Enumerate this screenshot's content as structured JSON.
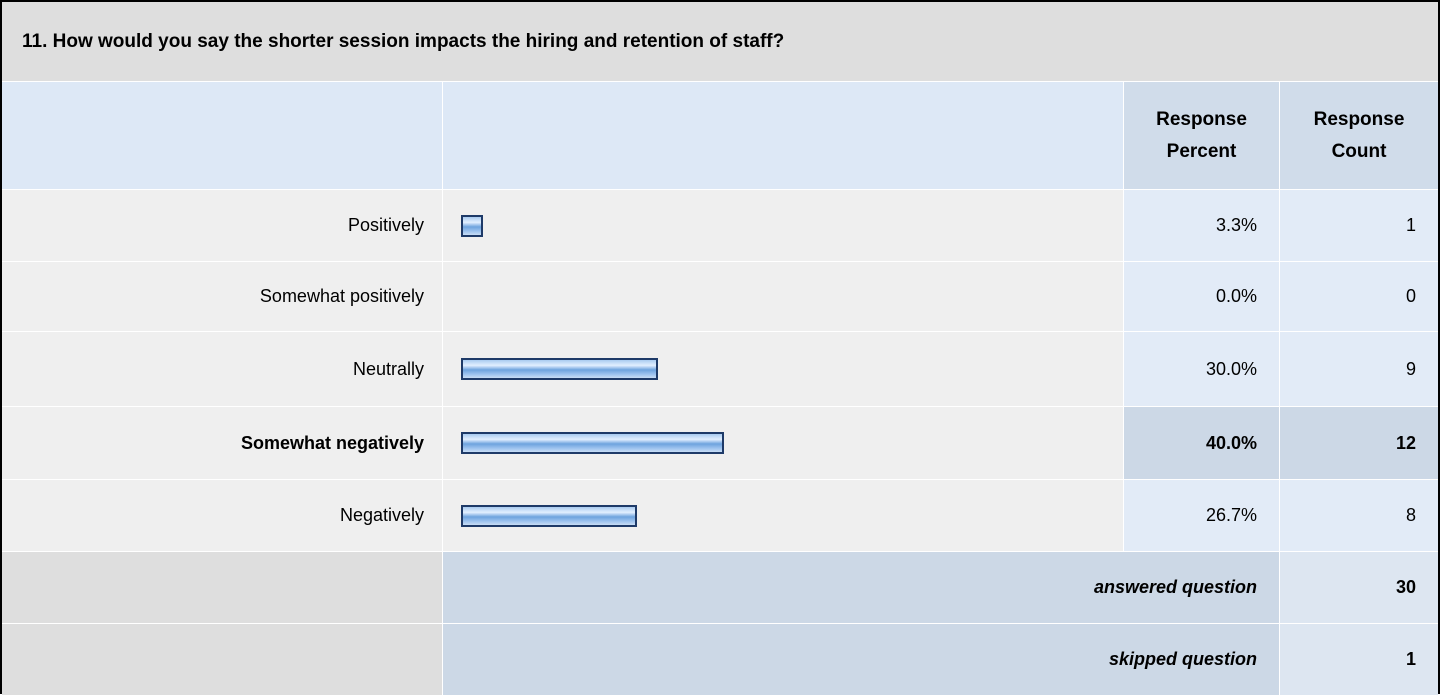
{
  "question": "11. How would you say the shorter session impacts the hiring and retention of staff?",
  "headers": {
    "percent": "Response Percent",
    "count": "Response Count"
  },
  "rows": [
    {
      "label": "Positively",
      "percent": 3.3,
      "percent_label": "3.3%",
      "count": 1
    },
    {
      "label": "Somewhat positively",
      "percent": 0.0,
      "percent_label": "0.0%",
      "count": 0
    },
    {
      "label": "Neutrally",
      "percent": 30.0,
      "percent_label": "30.0%",
      "count": 9
    },
    {
      "label": "Somewhat negatively",
      "percent": 40.0,
      "percent_label": "40.0%",
      "count": 12
    },
    {
      "label": "Negatively",
      "percent": 26.7,
      "percent_label": "26.7%",
      "count": 8
    }
  ],
  "footer": [
    {
      "label": "answered question",
      "count": 30
    },
    {
      "label": "skipped question",
      "count": 1
    }
  ]
}
